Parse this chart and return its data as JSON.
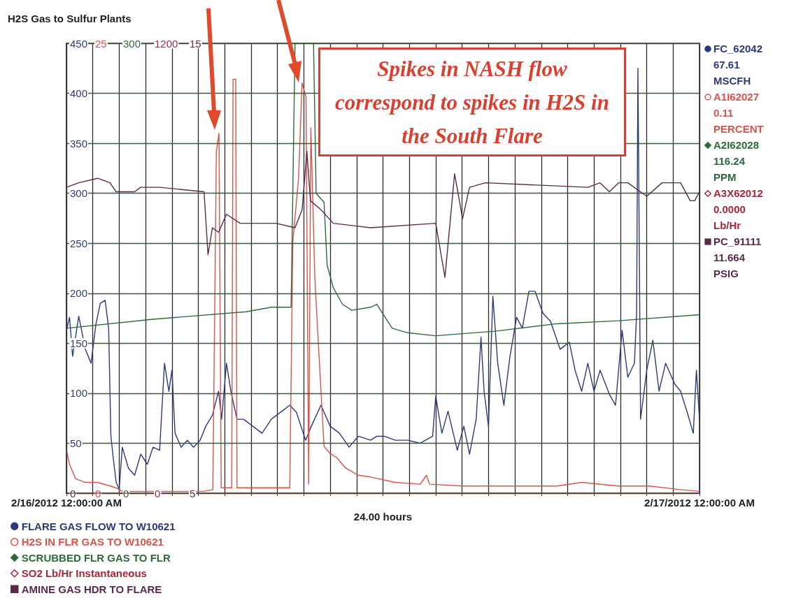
{
  "chart_data": [
    {
      "type": "line",
      "title": "H2S Gas to Sulfur Plants",
      "xlabel": "24.00 hours",
      "annotations": [
        "Spikes in NASH flow correspond to spikes in H2S in the South Flare",
        "FC_62042\n67.61\nMSCFH",
        "A1I62027\n0.11\nPERCENT",
        "A2I62028\n116.24\nPPM"
      ],
      "xlim": [
        "2012-02-16T00:00",
        "2012-02-17T00:00"
      ],
      "xticks": [
        {
          "value": "2012-02-16T00:00",
          "label": "2/16/2012 12:00:00 AM"
        },
        {
          "value": "2012-02-16T01:00",
          "label": null
        },
        {
          "value": "2012-02-16T02:00",
          "label": null
        },
        {
          "value": "2012-02-16T03:00",
          "label": null
        },
        {
          "value": "2012-02-16T04:00",
          "label": null
        },
        {
          "value": "2012-02-16T05:00",
          "label": null
        },
        {
          "value": "2012-02-16T06:00",
          "label": null
        },
        {
          "value": "2012-02-16T07:00",
          "label": null
        },
        {
          "value": "2012-02-16T08:00",
          "label": null
        },
        {
          "value": "2012-02-16T09:00",
          "label": null
        },
        {
          "value": "2012-02-16T10:00",
          "label": null
        },
        {
          "value": "2012-02-16T11:00",
          "label": null
        },
        {
          "value": "2012-02-16T12:00",
          "label": null
        },
        {
          "value": "2012-02-16T13:00",
          "label": null
        },
        {
          "value": "2012-02-16T14:00",
          "label": null
        },
        {
          "value": "2012-02-16T15:00",
          "label": null
        },
        {
          "value": "2012-02-16T16:00",
          "label": null
        },
        {
          "value": "2012-02-16T17:00",
          "label": null
        },
        {
          "value": "2012-02-16T18:00",
          "label": null
        },
        {
          "value": "2012-02-16T19:00",
          "label": null
        },
        {
          "value": "2012-02-16T20:00",
          "label": null
        },
        {
          "value": "2012-02-16T21:00",
          "label": null
        },
        {
          "value": "2012-02-16T22:00",
          "label": null
        },
        {
          "value": "2012-02-16T23:00",
          "label": null
        },
        {
          "value": "2012-02-17T00:00",
          "label": "2/17/2012 12:00:00 AM"
        }
      ],
      "ylim": [
        0,
        450
      ],
      "yticks": [
        0,
        50,
        100,
        150,
        200,
        250,
        300,
        350,
        400,
        450
      ],
      "y2lim": [
        0,
        25
      ],
      "y2ticks": [
        0,
        25
      ],
      "y3lim": [
        0,
        300
      ],
      "y3ticks": [
        0,
        300
      ],
      "grid": true,
      "legend": "bottom left",
      "series": [
        {
          "name": "FLARE GAS FLOW TO W10621",
          "color": "#2b3a7a",
          "x": [
            "2012-02-16T00:00",
            "2012-02-16T00:07",
            "2012-02-16T00:14",
            "2012-02-16T00:28",
            "2012-02-16T00:43",
            "2012-02-16T00:56",
            "2012-02-16T01:07",
            "2012-02-16T01:17",
            "2012-02-16T01:28",
            "2012-02-16T01:36",
            "2012-02-16T01:41",
            "2012-02-16T01:46",
            "2012-02-16T01:53",
            "2012-02-16T02:00",
            "2012-02-16T02:07",
            "2012-02-16T02:21",
            "2012-02-16T02:35",
            "2012-02-16T02:49",
            "2012-02-16T03:04",
            "2012-02-16T03:17",
            "2012-02-16T03:32",
            "2012-02-16T03:43",
            "2012-02-16T03:53",
            "2012-02-16T04:00",
            "2012-02-16T04:07",
            "2012-02-16T04:21",
            "2012-02-16T04:35",
            "2012-02-16T04:49",
            "2012-02-16T05:04",
            "2012-02-16T05:17",
            "2012-02-16T05:32",
            "2012-02-16T05:46",
            "2012-02-16T05:53",
            "2012-02-16T06:04",
            "2012-02-16T06:14",
            "2012-02-16T06:28",
            "2012-02-16T06:43",
            "2012-02-16T07:04",
            "2012-02-16T07:25",
            "2012-02-16T07:46",
            "2012-02-16T08:07",
            "2012-02-16T08:28",
            "2012-02-16T08:43",
            "2012-02-16T09:04",
            "2012-02-16T09:17",
            "2012-02-16T09:39",
            "2012-02-16T10:00",
            "2012-02-16T10:21",
            "2012-02-16T10:43",
            "2012-02-16T11:04",
            "2012-02-16T11:32",
            "2012-02-16T11:46",
            "2012-02-16T12:03",
            "2012-02-16T12:28",
            "2012-02-16T12:56",
            "2012-02-16T13:25",
            "2012-02-16T13:53",
            "2012-02-16T14:00",
            "2012-02-16T14:14",
            "2012-02-16T14:28",
            "2012-02-16T14:49",
            "2012-02-16T15:04",
            "2012-02-16T15:17",
            "2012-02-16T15:32",
            "2012-02-16T15:43",
            "2012-02-16T15:50",
            "2012-02-16T16:00",
            "2012-02-16T16:10",
            "2012-02-16T16:21",
            "2012-02-16T16:35",
            "2012-02-16T16:49",
            "2012-02-16T17:04",
            "2012-02-16T17:17",
            "2012-02-16T17:32",
            "2012-02-16T17:46",
            "2012-02-16T18:04",
            "2012-02-16T18:21",
            "2012-02-16T18:43",
            "2012-02-16T19:04",
            "2012-02-16T19:17",
            "2012-02-16T19:32",
            "2012-02-16T19:46",
            "2012-02-16T20:00",
            "2012-02-16T20:14",
            "2012-02-16T20:35",
            "2012-02-16T20:49",
            "2012-02-16T21:04",
            "2012-02-16T21:17",
            "2012-02-16T21:32",
            "2012-02-16T21:37",
            "2012-02-16T21:40",
            "2012-02-16T21:46",
            "2012-02-16T22:00",
            "2012-02-16T22:14",
            "2012-02-16T22:28",
            "2012-02-16T22:43",
            "2012-02-16T23:04",
            "2012-02-16T23:17",
            "2012-02-16T23:32",
            "2012-02-16T23:46",
            "2012-02-16T23:53",
            "2012-02-17T00:00"
          ],
          "values": [
            163,
            176,
            137,
            177,
            144,
            130,
            169,
            190,
            193,
            165,
            58,
            37,
            11,
            4,
            46,
            25,
            18,
            39,
            29,
            46,
            43,
            130,
            102,
            123,
            60,
            46,
            53,
            46,
            53,
            67,
            78,
            102,
            74,
            130,
            102,
            74,
            74,
            67,
            60,
            74,
            81,
            88,
            81,
            53,
            67,
            88,
            67,
            60,
            46,
            57,
            53,
            57,
            57,
            53,
            53,
            50,
            57,
            97,
            60,
            82,
            43,
            67,
            39,
            74,
            156,
            102,
            67,
            197,
            130,
            88,
            137,
            176,
            165,
            202,
            202,
            180,
            172,
            144,
            151,
            123,
            102,
            130,
            102,
            123,
            99,
            88,
            163,
            116,
            130,
            180,
            425,
            74,
            123,
            153,
            102,
            130,
            109,
            102,
            81,
            60,
            123,
            74
          ]
        },
        {
          "name": "H2S IN FLR GAS TO W10621",
          "color": "#d9534a",
          "axis": "y2",
          "x": [
            "2012-02-16T00:00",
            "2012-02-16T00:07",
            "2012-02-16T00:21",
            "2012-02-16T00:43",
            "2012-02-16T01:11",
            "2012-02-16T01:53",
            "2012-02-16T02:07",
            "2012-02-16T05:11",
            "2012-02-16T05:33",
            "2012-02-16T05:41",
            "2012-02-16T05:47",
            "2012-02-16T05:52",
            "2012-02-16T06:16",
            "2012-02-16T06:19",
            "2012-02-16T06:25",
            "2012-02-16T06:28",
            "2012-02-16T08:28",
            "2012-02-16T08:35",
            "2012-02-16T08:48",
            "2012-02-16T08:56",
            "2012-02-16T09:05",
            "2012-02-16T09:11",
            "2012-02-16T09:16",
            "2012-02-16T09:25",
            "2012-02-16T09:32",
            "2012-02-16T09:46",
            "2012-02-16T10:00",
            "2012-02-16T10:14",
            "2012-02-16T10:35",
            "2012-02-16T11:04",
            "2012-02-16T11:32",
            "2012-02-16T12:28",
            "2012-02-16T13:25",
            "2012-02-16T13:39",
            "2012-02-16T13:46",
            "2012-02-16T15:04",
            "2012-02-16T16:14",
            "2012-02-16T18:35",
            "2012-02-16T19:32",
            "2012-02-16T20:56",
            "2012-02-16T22:07",
            "2012-02-16T23:17",
            "2012-02-17T00:00"
          ],
          "values": [
            2.4,
            1.6,
            0.8,
            0.6,
            0.6,
            0.3,
            0.1,
            0.1,
            0.2,
            19,
            20,
            0.3,
            0.3,
            23,
            23,
            0.3,
            0.3,
            14,
            17.5,
            22.8,
            22,
            0.5,
            20.3,
            12,
            8.8,
            2.6,
            2.2,
            2.0,
            1.4,
            1.0,
            0.9,
            0.6,
            0.5,
            1.0,
            0.5,
            0.4,
            0.4,
            0.4,
            0.6,
            0.4,
            0.4,
            0.2,
            0.1
          ]
        },
        {
          "name": "SCRUBBED FLR GAS TO FLR",
          "color": "#2e6b3a",
          "axis": "y3",
          "x": [
            "2012-02-16T00:00",
            "2012-02-16T03:17",
            "2012-02-16T06:49",
            "2012-02-16T07:46",
            "2012-02-16T08:31",
            "2012-02-16T08:40",
            "2012-02-16T09:22",
            "2012-02-16T09:28",
            "2012-02-16T09:46",
            "2012-02-16T09:53",
            "2012-02-16T10:07",
            "2012-02-16T10:28",
            "2012-02-16T10:49",
            "2012-02-16T11:32",
            "2012-02-16T11:46",
            "2012-02-16T12:21",
            "2012-02-16T12:56",
            "2012-02-16T13:59",
            "2012-02-16T16:14",
            "2012-02-16T18:35",
            "2012-02-16T20:56",
            "2012-02-17T00:00"
          ],
          "values": [
            110,
            116,
            121,
            124,
            124,
            300,
            300,
            200,
            194,
            152,
            137,
            126,
            122,
            124,
            126,
            110,
            107,
            105,
            108,
            113,
            115,
            119
          ]
        }
      ]
    },
    {
      "type": "line",
      "tick_labels": "y",
      "annotations": [
        "A3X62012\n0.0000\nLb/Hr",
        "PC_91111\n11.664\nPSIG"
      ],
      "xlim": [
        "2012-02-16T00:00",
        "2012-02-17T00:00"
      ],
      "ylim": [
        0,
        1200
      ],
      "yticks": [
        0,
        1200
      ],
      "y2lim": [
        5,
        15
      ],
      "y2ticks": [
        5,
        15
      ],
      "legend": "bottom left",
      "series": [
        {
          "name": "SO2 Lb/Hr Instantaneous",
          "color": "#a8283a",
          "x": [
            "2012-02-16T00:00",
            "2012-02-16T06:00",
            "2012-02-16T12:00",
            "2012-02-16T18:00",
            "2012-02-17T00:00"
          ],
          "values": [
            0,
            0,
            0,
            0,
            0
          ]
        },
        {
          "name": "AMINE GAS HDR TO FLARE",
          "color": "#5a2a4a",
          "axis": "y2",
          "x": [
            "2012-02-16T00:00",
            "2012-02-16T00:28",
            "2012-02-16T01:11",
            "2012-02-16T01:39",
            "2012-02-16T01:53",
            "2012-02-16T02:35",
            "2012-02-16T02:49",
            "2012-02-16T03:32",
            "2012-02-16T05:13",
            "2012-02-16T05:22",
            "2012-02-16T05:32",
            "2012-02-16T05:46",
            "2012-02-16T06:04",
            "2012-02-16T06:35",
            "2012-02-16T07:57",
            "2012-02-16T08:40",
            "2012-02-16T08:56",
            "2012-02-16T09:07",
            "2012-02-16T09:15",
            "2012-02-16T09:39",
            "2012-02-16T10:07",
            "2012-02-16T11:32",
            "2012-02-16T14:00",
            "2012-02-16T14:21",
            "2012-02-16T14:43",
            "2012-02-16T15:01",
            "2012-02-16T15:17",
            "2012-02-16T15:53",
            "2012-02-16T19:46",
            "2012-02-16T20:14",
            "2012-02-16T20:35",
            "2012-02-16T20:56",
            "2012-02-16T21:17",
            "2012-02-16T22:00",
            "2012-02-16T22:35",
            "2012-02-16T23:17",
            "2012-02-16T23:39",
            "2012-02-16T23:49",
            "2012-02-17T00:00"
          ],
          "values": [
            11.8,
            11.9,
            12.0,
            11.9,
            11.7,
            11.7,
            11.8,
            11.8,
            11.7,
            10.3,
            10.9,
            10.8,
            11.2,
            11.0,
            11.0,
            10.9,
            11.3,
            12.6,
            11.5,
            11.3,
            11.0,
            10.9,
            11.0,
            9.8,
            12.1,
            11.1,
            11.8,
            11.9,
            11.8,
            11.9,
            11.7,
            11.9,
            11.9,
            11.6,
            11.9,
            11.9,
            11.5,
            11.5,
            11.7
          ]
        }
      ]
    }
  ]
}
